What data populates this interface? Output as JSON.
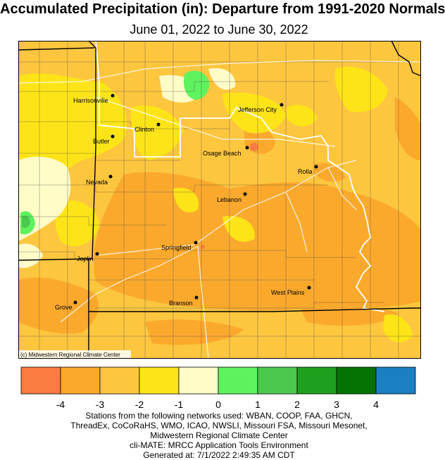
{
  "title": "Accumulated Precipitation (in): Departure from 1991-2020 Normals",
  "subtitle": "June 01, 2022 to June 30, 2022",
  "credit": "(c) Midwestern Regional Climate Center",
  "cities": [
    {
      "name": "Harrisonville"
    },
    {
      "name": "Jefferson City"
    },
    {
      "name": "Clinton"
    },
    {
      "name": "Butler"
    },
    {
      "name": "Osage Beach"
    },
    {
      "name": "Rolla"
    },
    {
      "name": "Nevada"
    },
    {
      "name": "Lebanon"
    },
    {
      "name": "Springfield"
    },
    {
      "name": "Joplin"
    },
    {
      "name": "West Plains"
    },
    {
      "name": "Grove"
    },
    {
      "name": "Branson"
    }
  ],
  "legend": {
    "bins": [
      {
        "color": "#fb7c41"
      },
      {
        "color": "#fba92d"
      },
      {
        "color": "#fdc63f"
      },
      {
        "color": "#fde418"
      },
      {
        "color": "#fffcc8"
      },
      {
        "color": "#5ff25f"
      },
      {
        "color": "#4dc84e"
      },
      {
        "color": "#1ea01e"
      },
      {
        "color": "#047304"
      },
      {
        "color": "#1b7fc3"
      }
    ],
    "ticks": [
      "-4",
      "-3",
      "-2",
      "-1",
      "0",
      "1",
      "2",
      "3",
      "4"
    ]
  },
  "footer": {
    "line1": "Stations from the following networks used: WBAN, COOP, FAA, GHCN,",
    "line2": "ThreadEx, CoCoRaHS, WMO, ICAO, NWSLI, Missouri FSA, Missouri Mesonet,",
    "line3": "Midwestern Regional Climate Center",
    "line4": "cli-MATE: MRCC Application Tools Environment",
    "line5": "Generated at: 7/1/2022 2:49:35 AM CDT"
  }
}
